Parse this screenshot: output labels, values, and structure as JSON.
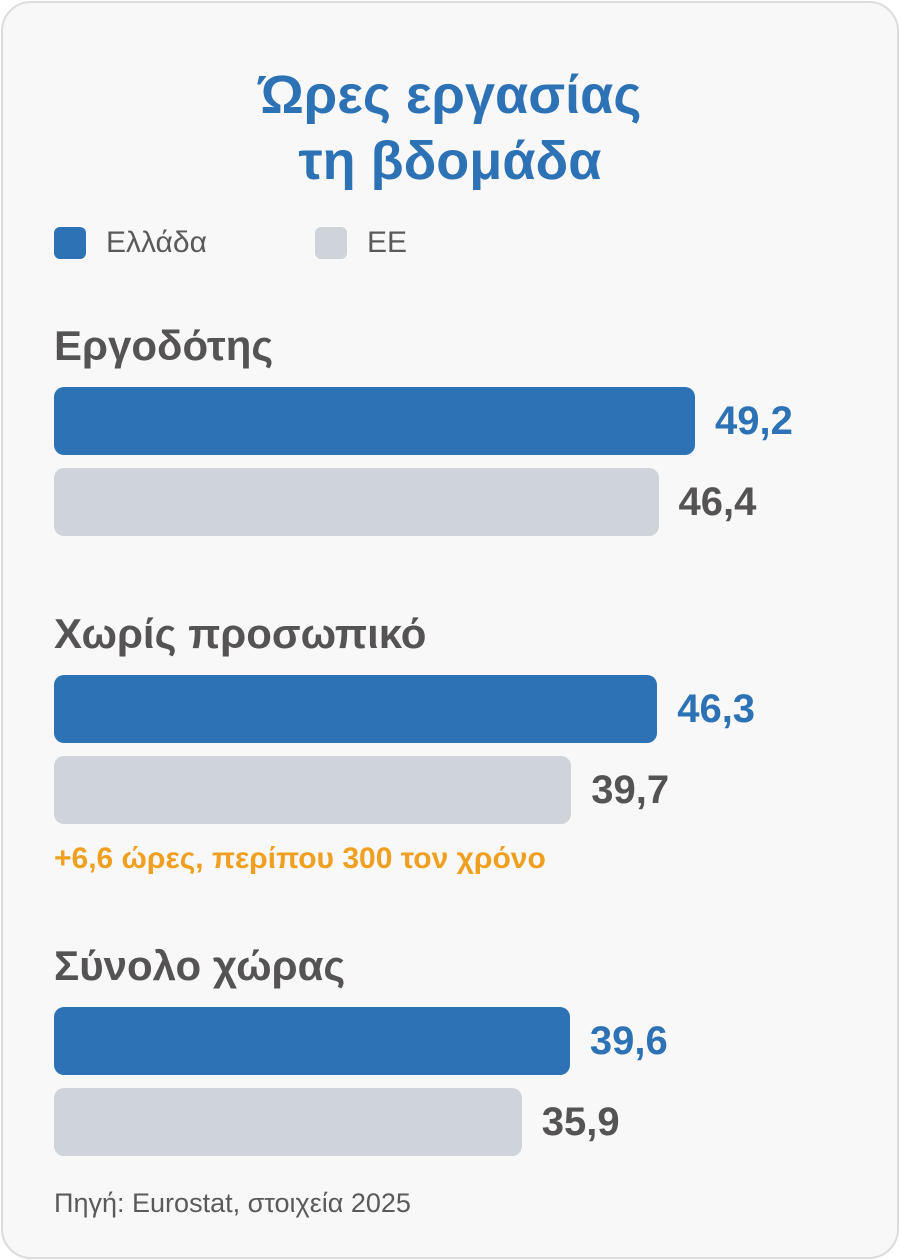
{
  "chart_data": {
    "type": "bar",
    "orientation": "horizontal",
    "title_lines": [
      "Ώρες εργασίας",
      "τη βδομάδα"
    ],
    "categories": [
      "Εργοδότης",
      "Χωρίς προσωπικό",
      "Σύνολο χώρας"
    ],
    "series": [
      {
        "name": "Ελλάδα",
        "color": "#2c72b5",
        "values": [
          49.2,
          46.3,
          39.6
        ],
        "labels": [
          "49,2",
          "46,3",
          "39,6"
        ]
      },
      {
        "name": "ΕΕ",
        "color": "#cfd4da",
        "values": [
          46.4,
          39.7,
          35.9
        ],
        "labels": [
          "46,4",
          "39,7",
          "35,9"
        ]
      }
    ],
    "value_label_colors": [
      "#2c72b5",
      "#555353"
    ],
    "annotation": "+6,6 ώρες, περίπου 300 τον χρόνο",
    "source": "Πηγή: Eurostat, στοιχεία 2025",
    "legend_position": "top-left",
    "grid": false
  }
}
